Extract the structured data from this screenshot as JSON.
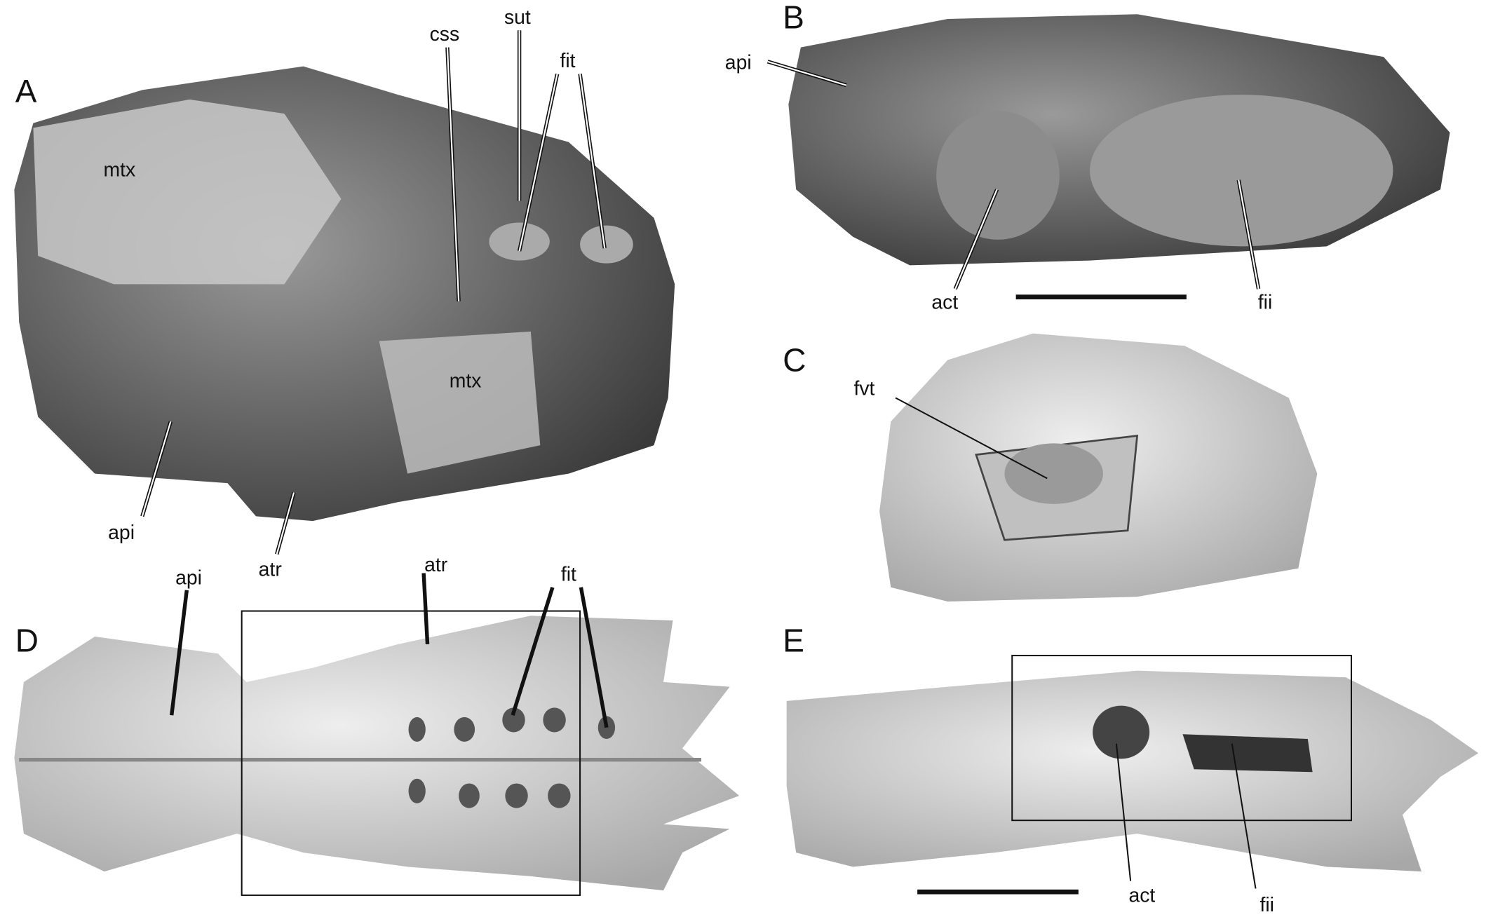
{
  "panels": [
    {
      "letter": "A",
      "labels": [
        "mtx",
        "css",
        "sut",
        "fit",
        "mtx",
        "api",
        "atr"
      ]
    },
    {
      "letter": "B",
      "labels": [
        "api",
        "act",
        "fii"
      ]
    },
    {
      "letter": "C",
      "labels": [
        "fvt"
      ]
    },
    {
      "letter": "D",
      "labels": [
        "api",
        "atr",
        "fit"
      ]
    },
    {
      "letter": "E",
      "labels": [
        "act",
        "fii"
      ]
    }
  ]
}
